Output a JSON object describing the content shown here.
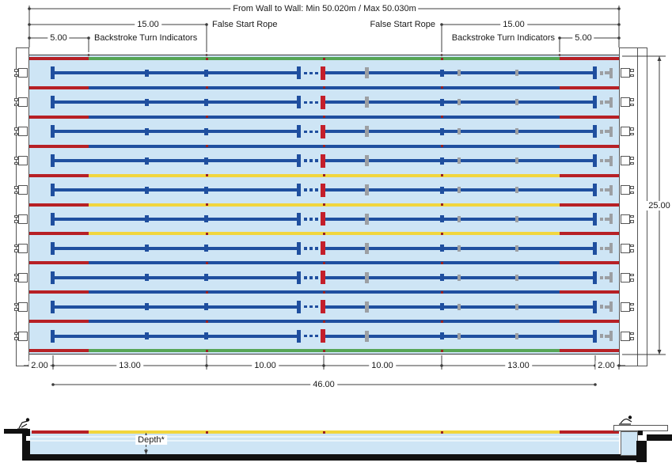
{
  "title": "From Wall to Wall: Min 50.020m / Max 50.030m",
  "dims": {
    "fifteen": "15.00",
    "five": "5.00",
    "false_start_rope": "False Start Rope",
    "backstroke": "Backstroke Turn Indicators",
    "bottom": [
      "2.00",
      "13.00",
      "10.00",
      "10.00",
      "13.00",
      "2.00"
    ],
    "bottom_total": "46.00",
    "pool_width": "25.00",
    "depth": "Depth*"
  },
  "pool": {
    "lanes": 10,
    "rope_colors": [
      "green",
      "blue",
      "blue",
      "blue",
      "yellow",
      "yellow",
      "yellow",
      "blue",
      "blue",
      "blue",
      "green"
    ]
  },
  "colors": {
    "water": "#cee5f5",
    "water_line": "#e9f4fb",
    "lane_blue": "#1f4f9f",
    "rope_green": "#56a556",
    "rope_yellow": "#f1d63e",
    "rope_red": "#b72025",
    "marker_red": "#c41f2b",
    "dot_red": "#992222",
    "gray": "#9c9fa3",
    "outline": "#3b3b3b",
    "dim": "#3c3c3c",
    "black": "#111111"
  }
}
